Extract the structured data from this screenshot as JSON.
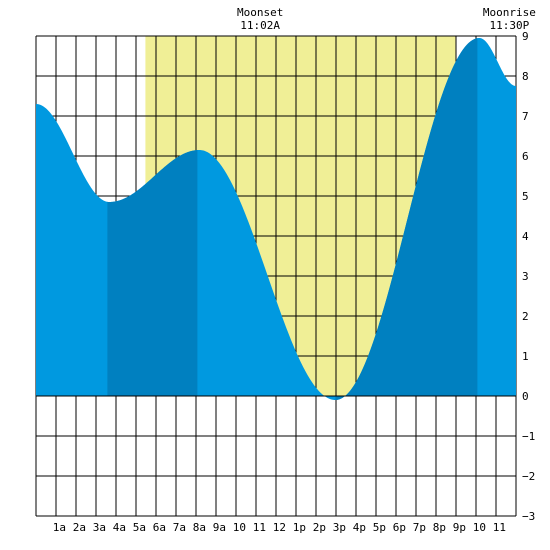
{
  "chart_data": {
    "type": "area",
    "x_unit": "hour of day",
    "xlim": [
      -0.17,
      23.83
    ],
    "ylim": [
      -3,
      9
    ],
    "y_ticks": [
      -3,
      -2,
      -1,
      0,
      1,
      2,
      3,
      4,
      5,
      6,
      7,
      8,
      9
    ],
    "x_ticks": [
      {
        "x": 1,
        "label": "1a"
      },
      {
        "x": 2,
        "label": "2a"
      },
      {
        "x": 3,
        "label": "3a"
      },
      {
        "x": 4,
        "label": "4a"
      },
      {
        "x": 5,
        "label": "5a"
      },
      {
        "x": 6,
        "label": "6a"
      },
      {
        "x": 7,
        "label": "7a"
      },
      {
        "x": 8,
        "label": "8a"
      },
      {
        "x": 9,
        "label": "9a"
      },
      {
        "x": 10,
        "label": "10"
      },
      {
        "x": 11,
        "label": "11"
      },
      {
        "x": 12,
        "label": "12"
      },
      {
        "x": 13,
        "label": "1p"
      },
      {
        "x": 14,
        "label": "2p"
      },
      {
        "x": 15,
        "label": "3p"
      },
      {
        "x": 16,
        "label": "4p"
      },
      {
        "x": 17,
        "label": "5p"
      },
      {
        "x": 18,
        "label": "6p"
      },
      {
        "x": 19,
        "label": "7p"
      },
      {
        "x": 20,
        "label": "8p"
      },
      {
        "x": 21,
        "label": "9p"
      },
      {
        "x": 22,
        "label": "10"
      },
      {
        "x": 23,
        "label": "11"
      }
    ],
    "tide_extremes": [
      {
        "x": -0.17,
        "y": 7.3
      },
      {
        "x": 3.5,
        "y": 4.85
      },
      {
        "x": 8.0,
        "y": 6.15
      },
      {
        "x": 14.8,
        "y": -0.1
      },
      {
        "x": 22.0,
        "y": 8.95
      },
      {
        "x": 23.83,
        "y": 7.75
      }
    ],
    "moon_up_period": {
      "start": 5.3,
      "end": 20.8
    },
    "dark_bands": [
      {
        "start": 3.4,
        "end": 7.9
      },
      {
        "start": 14.8,
        "end": 21.9
      }
    ],
    "moon_events": [
      {
        "x": 11.03,
        "title": "Moonset",
        "time": "11:02A"
      },
      {
        "x": 23.5,
        "title": "Moonrise",
        "time": "11:30P"
      }
    ],
    "grid": true,
    "colors": {
      "background": "#ffffff",
      "moon_highlight": "#f0ef96",
      "water": "#0099e0",
      "water_dark": "#0080c0",
      "grid": "#000000"
    }
  }
}
